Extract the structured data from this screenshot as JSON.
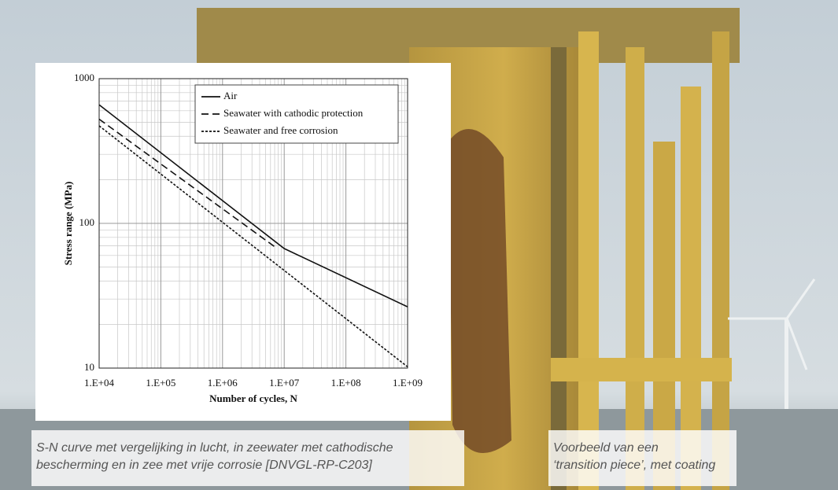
{
  "chart_data": {
    "type": "line",
    "y_label": "Stress range (MPa)",
    "x_label": "Number of cycles, N",
    "xscale": "log",
    "yscale": "log",
    "grid": true,
    "legend": "top-right",
    "xlim": [
      10000,
      1000000000
    ],
    "xticks": [
      {
        "value": 10000,
        "label": "1.E+04"
      },
      {
        "value": 100000,
        "label": "1.E+05"
      },
      {
        "value": 1000000,
        "label": "1.E+06"
      },
      {
        "value": 10000000,
        "label": "1.E+07"
      },
      {
        "value": 100000000,
        "label": "1.E+08"
      },
      {
        "value": 1000000000,
        "label": "1.E+09"
      }
    ],
    "ylim": [
      10,
      1000
    ],
    "yticks": [
      10,
      100,
      1000
    ],
    "series": [
      {
        "name": "Air",
        "color": "#111111",
        "dash": "none",
        "x": [
          10000,
          10000000,
          1000000000
        ],
        "values": [
          660,
          67,
          26.5
        ]
      },
      {
        "name": "Seawater with cathodic protection",
        "color": "#111111",
        "dash": "9,5",
        "x": [
          10000,
          7000000
        ],
        "values": [
          525,
          69
        ]
      },
      {
        "name": "Seawater and free corrosion",
        "color": "#111111",
        "dash": "3,2",
        "x": [
          10000,
          1000000000
        ],
        "values": [
          472,
          10.2
        ]
      }
    ]
  },
  "captions": {
    "left": [
      "S-N curve met vergelijking in lucht, in zeewater met cathodische",
      "bescherming en in zee met vrije corrosie [DNVGL-RP-C203]"
    ],
    "right": [
      "Voorbeeld van een",
      "‘transition piece’, met coating"
    ]
  }
}
